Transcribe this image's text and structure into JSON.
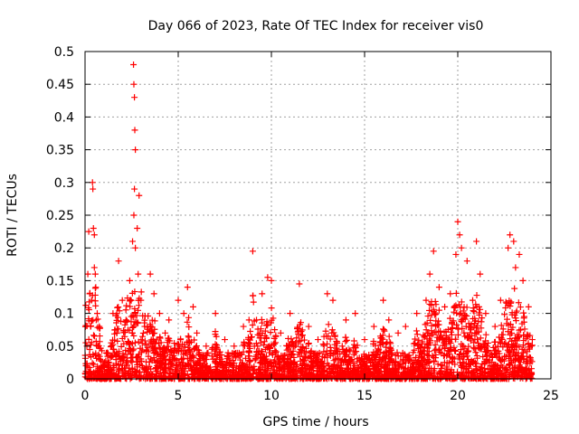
{
  "chart_data": {
    "type": "scatter",
    "title": "Day 066 of 2023, Rate Of TEC Index for receiver vis0",
    "xlabel": "GPS time / hours",
    "ylabel": "ROTI / TECUs",
    "xlim": [
      0,
      25
    ],
    "ylim": [
      0,
      0.5
    ],
    "xticks": [
      0,
      5,
      10,
      15,
      20,
      25
    ],
    "xtick_labels": [
      "0",
      "5",
      "10",
      "15",
      "20",
      "25"
    ],
    "yticks": [
      0,
      0.05,
      0.1,
      0.15,
      0.2,
      0.25,
      0.3,
      0.35,
      0.4,
      0.45,
      0.5
    ],
    "ytick_labels": [
      "0",
      "0.05",
      "0.1",
      "0.15",
      "0.2",
      "0.25",
      "0.3",
      "0.35",
      "0.4",
      "0.45",
      "0.5"
    ],
    "grid": true,
    "marker": "plus",
    "color": "#ff0000",
    "series": [
      {
        "points": [
          [
            0.05,
            0.02
          ],
          [
            0.1,
            0.05
          ],
          [
            0.15,
            0.16
          ],
          [
            0.2,
            0.225
          ],
          [
            0.25,
            0.13
          ],
          [
            0.3,
            0.08
          ],
          [
            0.35,
            0.12
          ],
          [
            0.4,
            0.3
          ],
          [
            0.42,
            0.29
          ],
          [
            0.45,
            0.23
          ],
          [
            0.5,
            0.22
          ],
          [
            0.5,
            0.17
          ],
          [
            0.55,
            0.16
          ],
          [
            0.6,
            0.09
          ],
          [
            0.7,
            0.05
          ],
          [
            0.8,
            0.03
          ],
          [
            1.0,
            0.02
          ],
          [
            1.2,
            0.04
          ],
          [
            1.5,
            0.1
          ],
          [
            1.7,
            0.07
          ],
          [
            1.8,
            0.18
          ],
          [
            2.0,
            0.12
          ],
          [
            2.2,
            0.09
          ],
          [
            2.4,
            0.15
          ],
          [
            2.55,
            0.21
          ],
          [
            2.6,
            0.48
          ],
          [
            2.62,
            0.45
          ],
          [
            2.65,
            0.43
          ],
          [
            2.67,
            0.38
          ],
          [
            2.7,
            0.35
          ],
          [
            2.65,
            0.29
          ],
          [
            2.62,
            0.25
          ],
          [
            2.7,
            0.2
          ],
          [
            2.8,
            0.23
          ],
          [
            2.9,
            0.28
          ],
          [
            2.85,
            0.16
          ],
          [
            3.0,
            0.12
          ],
          [
            3.2,
            0.08
          ],
          [
            3.5,
            0.16
          ],
          [
            3.7,
            0.13
          ],
          [
            4.0,
            0.1
          ],
          [
            4.3,
            0.07
          ],
          [
            4.5,
            0.09
          ],
          [
            5.0,
            0.12
          ],
          [
            5.3,
            0.1
          ],
          [
            5.5,
            0.14
          ],
          [
            5.8,
            0.11
          ],
          [
            6.0,
            0.07
          ],
          [
            6.5,
            0.05
          ],
          [
            7.0,
            0.1
          ],
          [
            7.5,
            0.06
          ],
          [
            8.0,
            0.05
          ],
          [
            8.5,
            0.08
          ],
          [
            9.0,
            0.195
          ],
          [
            9.2,
            0.09
          ],
          [
            9.5,
            0.13
          ],
          [
            9.8,
            0.155
          ],
          [
            10.0,
            0.15
          ],
          [
            10.5,
            0.07
          ],
          [
            11.0,
            0.1
          ],
          [
            11.5,
            0.145
          ],
          [
            12.0,
            0.08
          ],
          [
            12.5,
            0.06
          ],
          [
            13.0,
            0.13
          ],
          [
            13.3,
            0.12
          ],
          [
            13.8,
            0.05
          ],
          [
            14.0,
            0.09
          ],
          [
            14.5,
            0.1
          ],
          [
            15.0,
            0.06
          ],
          [
            15.5,
            0.08
          ],
          [
            16.0,
            0.12
          ],
          [
            16.3,
            0.09
          ],
          [
            16.8,
            0.07
          ],
          [
            17.2,
            0.08
          ],
          [
            17.8,
            0.1
          ],
          [
            18.3,
            0.12
          ],
          [
            18.5,
            0.16
          ],
          [
            18.7,
            0.195
          ],
          [
            19.0,
            0.14
          ],
          [
            19.3,
            0.11
          ],
          [
            19.6,
            0.13
          ],
          [
            19.9,
            0.19
          ],
          [
            20.0,
            0.24
          ],
          [
            20.1,
            0.22
          ],
          [
            20.2,
            0.2
          ],
          [
            20.5,
            0.18
          ],
          [
            20.8,
            0.12
          ],
          [
            21.0,
            0.21
          ],
          [
            21.2,
            0.16
          ],
          [
            21.5,
            0.1
          ],
          [
            22.0,
            0.08
          ],
          [
            22.3,
            0.12
          ],
          [
            22.7,
            0.2
          ],
          [
            22.8,
            0.22
          ],
          [
            23.0,
            0.21
          ],
          [
            23.1,
            0.17
          ],
          [
            23.3,
            0.19
          ],
          [
            23.5,
            0.15
          ],
          [
            23.8,
            0.11
          ],
          [
            24.0,
            0.06
          ]
        ]
      }
    ]
  }
}
